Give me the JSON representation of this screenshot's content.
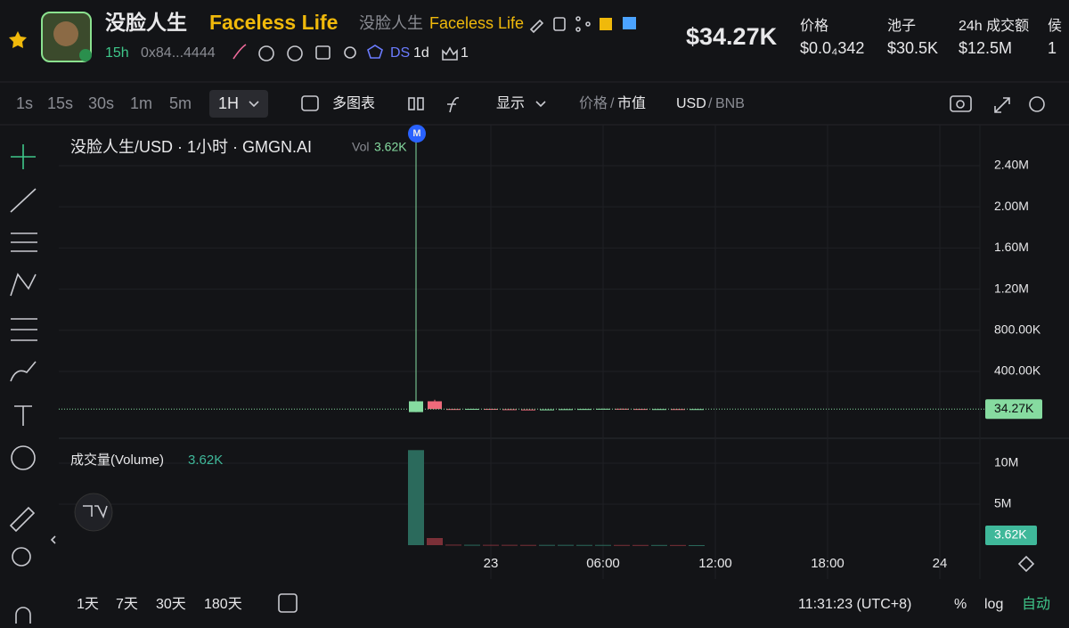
{
  "header": {
    "name": "没脸人生",
    "name_en": "Faceless Life",
    "alt_name": "没脸人生",
    "alt_name_en": "Faceless Life",
    "age": "15h",
    "address": "0x84...4444",
    "ds": "DS",
    "ds_age": "1d",
    "crown_count": "1",
    "market_cap": "$34.27K",
    "stats": [
      {
        "label": "价格",
        "value": "$0.0₄342"
      },
      {
        "label": "池子",
        "value": "$30.5K"
      },
      {
        "label": "24h 成交额",
        "value": "$12.5M"
      },
      {
        "label": "侯",
        "value": "1"
      }
    ]
  },
  "toolbar": {
    "intervals": [
      "1s",
      "15s",
      "30s",
      "1m",
      "5m"
    ],
    "active_interval": "1H",
    "multi_chart": "多图表",
    "display": "显示",
    "price": "价格",
    "market_cap": "市值",
    "usd": "USD",
    "bnb": "BNB"
  },
  "chart_data": {
    "type": "candlestick",
    "legend": "没脸人生/USD · 1小时 · GMGN.AI",
    "vol_label": "Vol",
    "vol_value": "3.62K",
    "marker": "M",
    "volume_title": "成交量(Volume)",
    "volume_value": "3.62K",
    "categories": [
      null,
      null,
      null,
      null,
      null,
      null,
      null,
      null,
      null,
      null,
      null,
      null,
      null,
      null,
      null,
      null
    ],
    "open": [
      5000,
      110000,
      35000,
      31000,
      36000,
      33000,
      30500,
      28000,
      31000,
      33500,
      35000,
      37500,
      35500,
      33000,
      34500,
      33800
    ],
    "high": [
      2690000,
      125000,
      36000,
      37000,
      37000,
      34000,
      31500,
      32000,
      34500,
      36000,
      38500,
      38500,
      36500,
      35500,
      35500,
      35270
    ],
    "low": [
      5000,
      33000,
      30000,
      30000,
      32000,
      29500,
      27000,
      27000,
      30000,
      32500,
      34000,
      34500,
      32000,
      32000,
      32800,
      32800
    ],
    "close": [
      110000,
      35000,
      31000,
      36000,
      33000,
      30500,
      28000,
      31000,
      33500,
      35000,
      37500,
      35500,
      33000,
      34500,
      33800,
      34270
    ],
    "volume": [
      11600000,
      870000,
      60000,
      45000,
      40000,
      38000,
      30000,
      32000,
      35000,
      28000,
      30000,
      25000,
      22000,
      20000,
      18000,
      3620
    ],
    "up_color": "#86dba0",
    "down_color": "#ef6a7b",
    "volume_up_color": "#2b6a5c",
    "volume_down_color": "#7b3038",
    "ylim": [
      -232000,
      2798000
    ],
    "yticks": [
      {
        "value": 400000,
        "label": "400.00K"
      },
      {
        "value": 800000,
        "label": "800.00K"
      },
      {
        "value": 1200000,
        "label": "1.20M"
      },
      {
        "value": 1600000,
        "label": "1.60M"
      },
      {
        "value": 2000000,
        "label": "2.00M"
      },
      {
        "value": 2400000,
        "label": "2.40M"
      }
    ],
    "current_price": {
      "value": 34270,
      "label": "34.27K"
    },
    "volume_ylim": [
      0,
      12720000
    ],
    "volume_yticks": [
      {
        "value": 5000000,
        "label": "5M"
      },
      {
        "value": 10000000,
        "label": "10M"
      }
    ],
    "current_volume": {
      "value": 3620,
      "label": "3.62K"
    },
    "x_tick_labels": [
      "23",
      "06:00",
      "12:00",
      "18:00",
      "24"
    ]
  },
  "footer": {
    "ranges": [
      "1天",
      "7天",
      "30天",
      "180天"
    ],
    "clock": "11:31:23 (UTC+8)",
    "percent": "%",
    "log": "log",
    "auto": "自动"
  }
}
